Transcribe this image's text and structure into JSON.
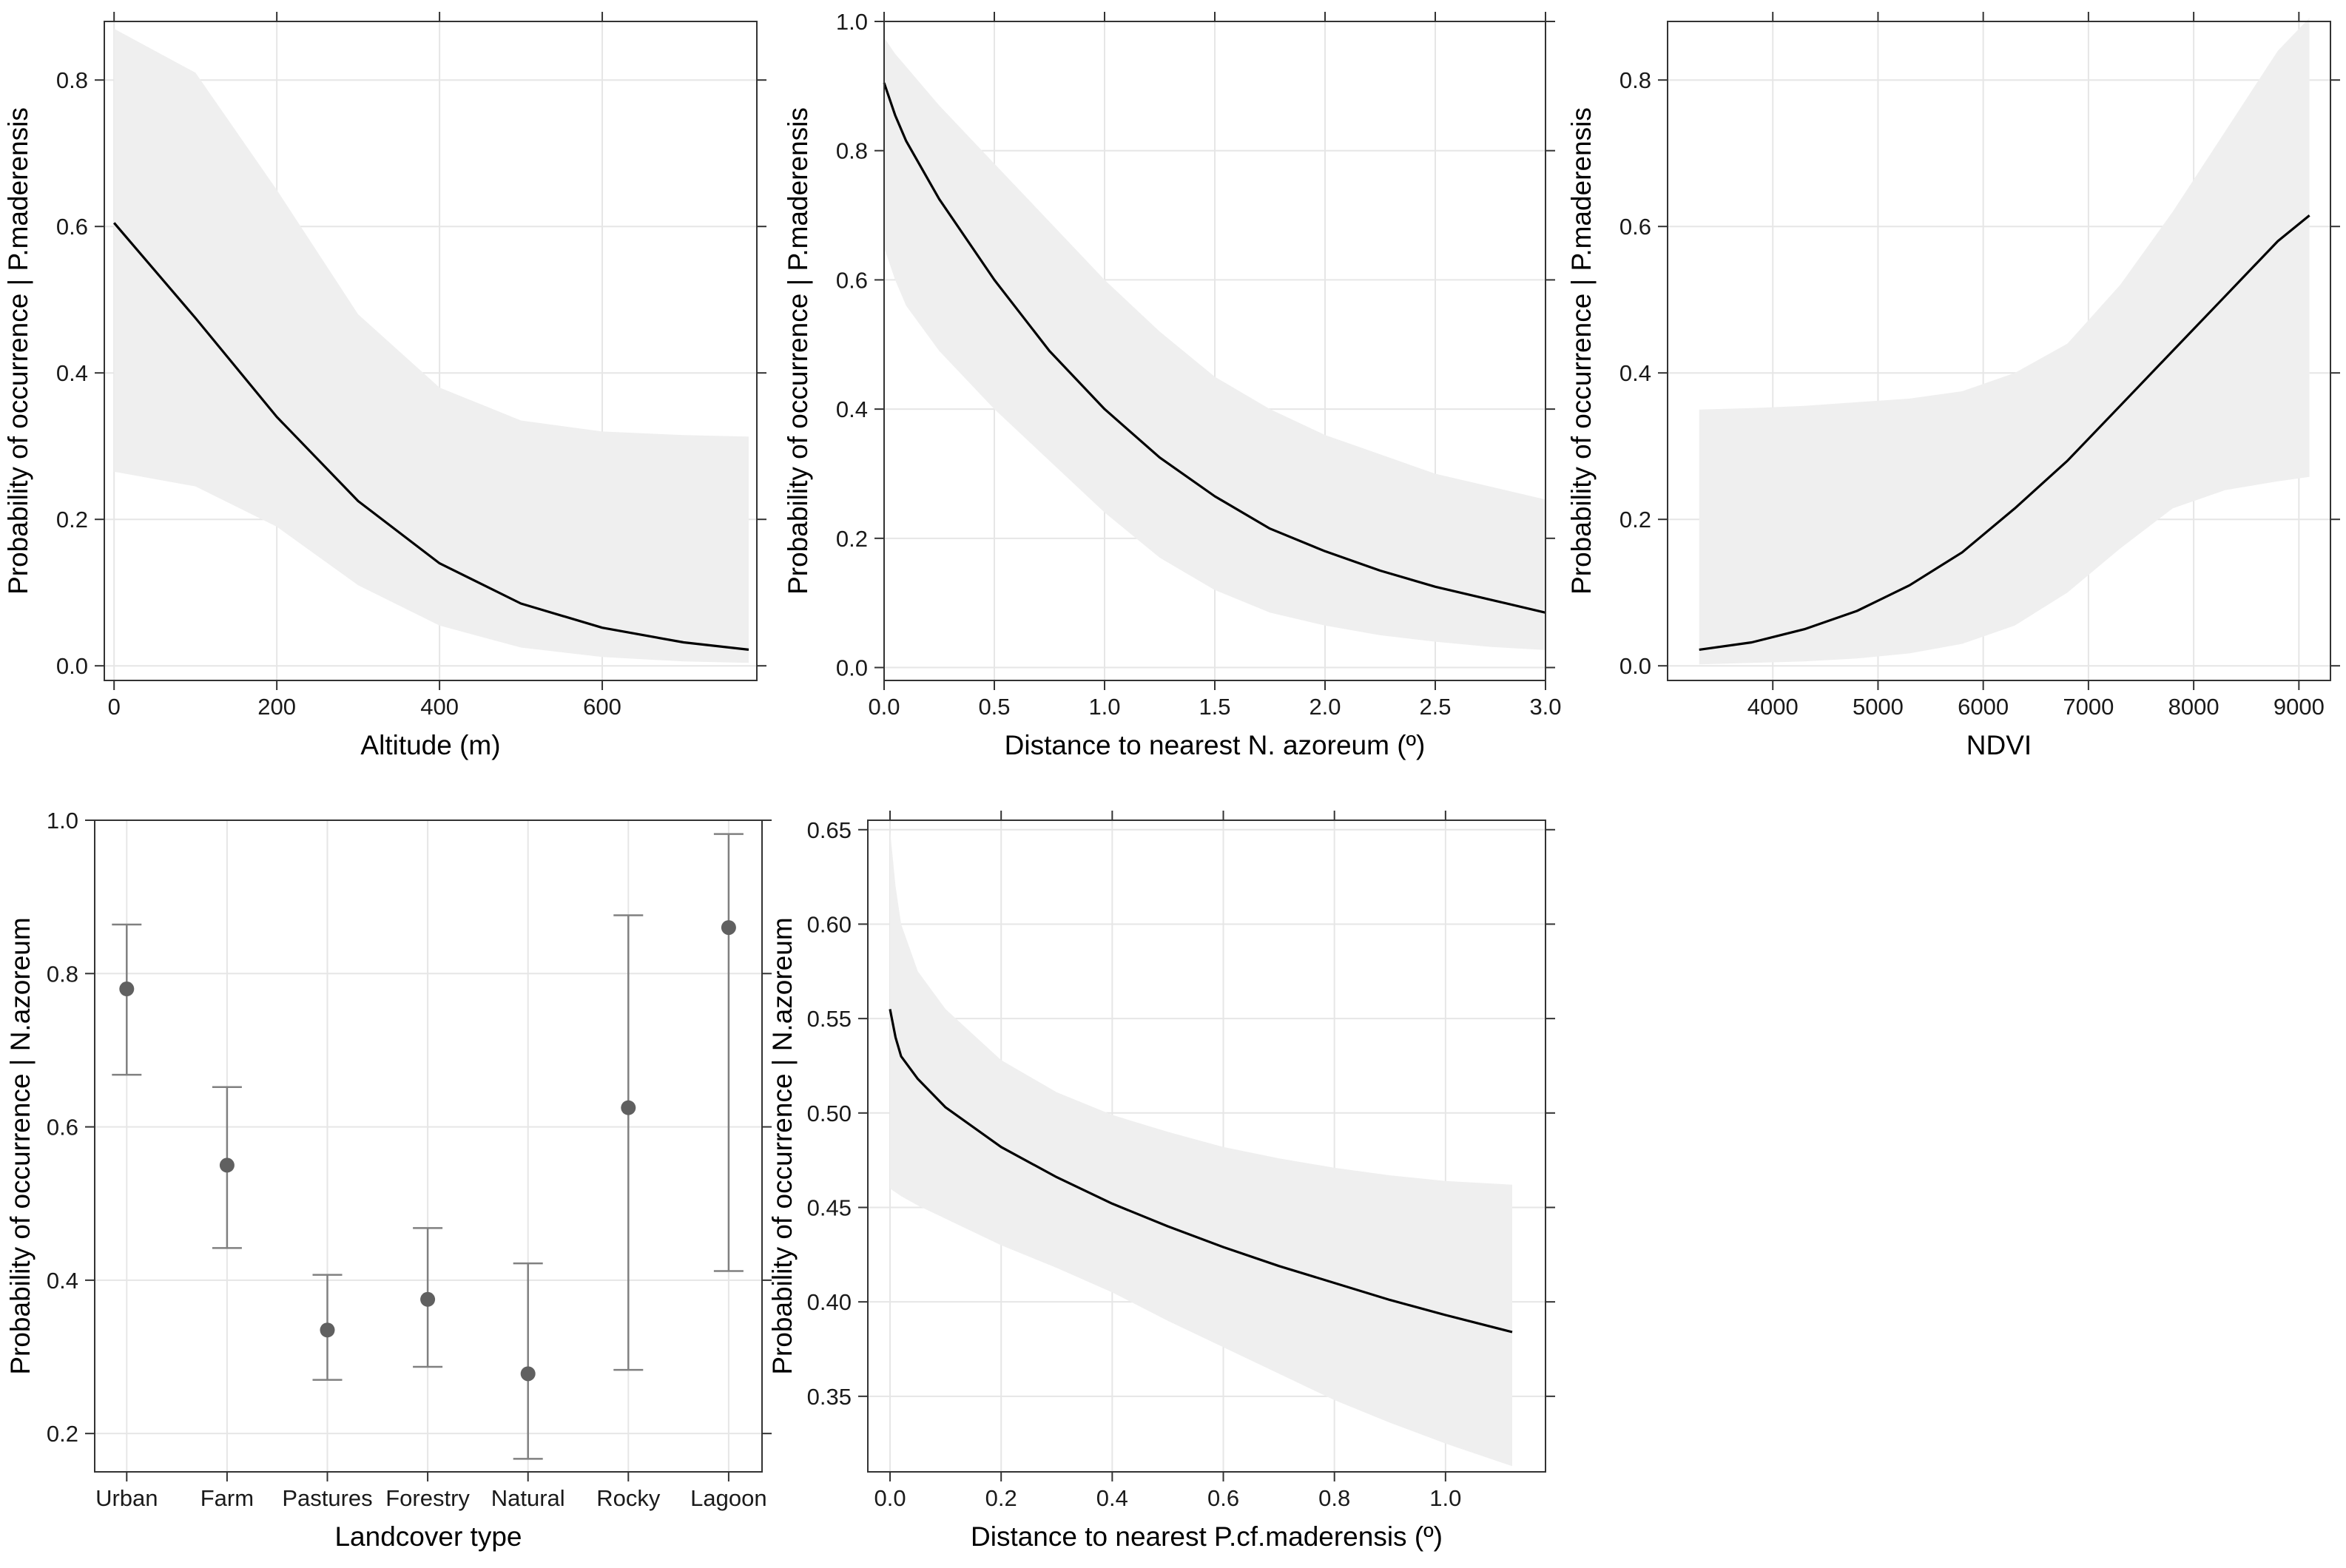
{
  "figure": {
    "layout": "2 rows x 3 columns, bottom-right empty"
  },
  "colors": {
    "line": "#000000",
    "band": "#efefef",
    "grid": "#e6e6e6",
    "frame": "#333333",
    "point": "#606060",
    "errorbar": "#808080"
  },
  "chart_data": [
    {
      "id": "altitude",
      "type": "line",
      "title": "",
      "xlabel": "Altitude (m)",
      "ylabel": "Probability of occurrence | P.maderensis",
      "xlim": [
        -12,
        790
      ],
      "ylim": [
        -0.02,
        0.88
      ],
      "xticks": [
        0,
        200,
        400,
        600
      ],
      "yticks": [
        0.0,
        0.2,
        0.4,
        0.6,
        0.8
      ],
      "xtick_labels": [
        "0",
        "200",
        "400",
        "600"
      ],
      "ytick_labels": [
        "0.0",
        "0.2",
        "0.4",
        "0.6",
        "0.8"
      ],
      "grid": true,
      "series": [
        {
          "name": "fit",
          "x": [
            0,
            100,
            200,
            300,
            400,
            500,
            600,
            700,
            780
          ],
          "y": [
            0.605,
            0.475,
            0.34,
            0.225,
            0.14,
            0.085,
            0.052,
            0.032,
            0.022
          ],
          "lower": [
            0.265,
            0.245,
            0.19,
            0.11,
            0.055,
            0.025,
            0.012,
            0.006,
            0.004
          ],
          "upper": [
            0.87,
            0.81,
            0.65,
            0.48,
            0.38,
            0.335,
            0.32,
            0.315,
            0.313
          ]
        }
      ]
    },
    {
      "id": "dist_azoreum",
      "type": "line",
      "title": "",
      "xlabel": "Distance to nearest N. azoreum (º)",
      "ylabel": "Probability of occurrence | P.maderensis",
      "xlim": [
        0,
        3.0
      ],
      "ylim": [
        -0.02,
        1.0
      ],
      "xticks": [
        0.0,
        0.5,
        1.0,
        1.5,
        2.0,
        2.5,
        3.0
      ],
      "yticks": [
        0.0,
        0.2,
        0.4,
        0.6,
        0.8,
        1.0
      ],
      "xtick_labels": [
        "0.0",
        "0.5",
        "1.0",
        "1.5",
        "2.0",
        "2.5",
        "3.0"
      ],
      "ytick_labels": [
        "0.0",
        "0.2",
        "0.4",
        "0.6",
        "0.8",
        "1.0"
      ],
      "grid": true,
      "series": [
        {
          "name": "fit",
          "x": [
            0,
            0.05,
            0.1,
            0.25,
            0.5,
            0.75,
            1.0,
            1.25,
            1.5,
            1.75,
            2.0,
            2.25,
            2.5,
            2.75,
            3.0
          ],
          "y": [
            0.905,
            0.855,
            0.815,
            0.725,
            0.6,
            0.49,
            0.4,
            0.325,
            0.265,
            0.215,
            0.18,
            0.15,
            0.125,
            0.105,
            0.085
          ],
          "lower": [
            0.65,
            0.6,
            0.56,
            0.49,
            0.4,
            0.32,
            0.24,
            0.17,
            0.12,
            0.085,
            0.065,
            0.05,
            0.04,
            0.032,
            0.027
          ],
          "upper": [
            0.975,
            0.95,
            0.93,
            0.87,
            0.78,
            0.69,
            0.6,
            0.52,
            0.45,
            0.4,
            0.36,
            0.33,
            0.3,
            0.28,
            0.26
          ]
        }
      ]
    },
    {
      "id": "ndvi",
      "type": "line",
      "title": "",
      "xlabel": "NDVI",
      "ylabel": "Probability of occurrence | P.maderensis",
      "xlim": [
        3000,
        9300
      ],
      "ylim": [
        -0.02,
        0.88
      ],
      "xticks": [
        4000,
        5000,
        6000,
        7000,
        8000,
        9000
      ],
      "yticks": [
        0.0,
        0.2,
        0.4,
        0.6,
        0.8
      ],
      "xtick_labels": [
        "4000",
        "5000",
        "6000",
        "7000",
        "8000",
        "9000"
      ],
      "ytick_labels": [
        "0.0",
        "0.2",
        "0.4",
        "0.6",
        "0.8"
      ],
      "grid": true,
      "series": [
        {
          "name": "fit",
          "x": [
            3300,
            3800,
            4300,
            4800,
            5300,
            5800,
            6300,
            6800,
            7300,
            7800,
            8300,
            8800,
            9100
          ],
          "y": [
            0.022,
            0.032,
            0.05,
            0.075,
            0.11,
            0.155,
            0.215,
            0.28,
            0.355,
            0.43,
            0.505,
            0.58,
            0.615
          ],
          "lower": [
            0.002,
            0.004,
            0.006,
            0.01,
            0.017,
            0.03,
            0.055,
            0.1,
            0.16,
            0.215,
            0.24,
            0.252,
            0.258
          ],
          "upper": [
            0.35,
            0.352,
            0.355,
            0.36,
            0.365,
            0.375,
            0.4,
            0.44,
            0.52,
            0.62,
            0.73,
            0.84,
            0.885
          ]
        }
      ]
    },
    {
      "id": "landcover",
      "type": "errorbar",
      "title": "",
      "xlabel": "Landcover type",
      "ylabel": "Probability of occurrence | N.azoreum",
      "ylim": [
        0.15,
        1.0
      ],
      "yticks": [
        0.2,
        0.4,
        0.6,
        0.8,
        1.0
      ],
      "ytick_labels": [
        "0.2",
        "0.4",
        "0.6",
        "0.8",
        "1.0"
      ],
      "grid": true,
      "categories": [
        "Urban",
        "Farm",
        "Pastures",
        "Forestry",
        "Natural",
        "Rocky",
        "Lagoon"
      ],
      "values": [
        0.78,
        0.55,
        0.335,
        0.375,
        0.278,
        0.625,
        0.86
      ],
      "lower": [
        0.668,
        0.442,
        0.27,
        0.287,
        0.167,
        0.283,
        0.412
      ],
      "upper": [
        0.864,
        0.652,
        0.407,
        0.468,
        0.422,
        0.876,
        0.982
      ]
    },
    {
      "id": "dist_maderensis",
      "type": "line",
      "title": "",
      "xlabel": "Distance to nearest P.cf.maderensis (º)",
      "ylabel": "Probability of occurrence | N.azoreum",
      "xlim": [
        -0.04,
        1.18
      ],
      "ylim": [
        0.31,
        0.655
      ],
      "xticks": [
        0.0,
        0.2,
        0.4,
        0.6,
        0.8,
        1.0
      ],
      "yticks": [
        0.35,
        0.4,
        0.45,
        0.5,
        0.55,
        0.6,
        0.65
      ],
      "xtick_labels": [
        "0.0",
        "0.2",
        "0.4",
        "0.6",
        "0.8",
        "1.0"
      ],
      "ytick_labels": [
        "0.35",
        "0.40",
        "0.45",
        "0.50",
        "0.55",
        "0.60",
        "0.65"
      ],
      "grid": true,
      "series": [
        {
          "name": "fit",
          "x": [
            0.0,
            0.01,
            0.02,
            0.05,
            0.1,
            0.2,
            0.3,
            0.4,
            0.5,
            0.6,
            0.7,
            0.8,
            0.9,
            1.0,
            1.12
          ],
          "y": [
            0.555,
            0.54,
            0.53,
            0.518,
            0.503,
            0.482,
            0.466,
            0.452,
            0.44,
            0.429,
            0.419,
            0.41,
            0.401,
            0.393,
            0.384
          ],
          "lower": [
            0.46,
            0.458,
            0.456,
            0.451,
            0.444,
            0.43,
            0.418,
            0.405,
            0.39,
            0.376,
            0.362,
            0.348,
            0.336,
            0.325,
            0.313
          ],
          "upper": [
            0.65,
            0.62,
            0.6,
            0.575,
            0.555,
            0.528,
            0.511,
            0.499,
            0.49,
            0.482,
            0.476,
            0.471,
            0.467,
            0.464,
            0.462
          ]
        }
      ]
    }
  ]
}
